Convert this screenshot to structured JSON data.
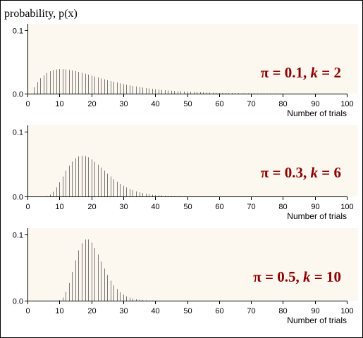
{
  "figure": {
    "ylabel": "probability, p(x)"
  },
  "chart_data": [
    {
      "type": "bar",
      "annotation": {
        "pi": "π = 0.1, ",
        "k_sym": "k",
        "eq": " = 2"
      },
      "pi": 0.1,
      "k": 2,
      "xlabel": "Number of trials",
      "xlim": [
        0,
        100
      ],
      "ylim": [
        0,
        0.11
      ],
      "xticks": [
        "0",
        "10",
        "20",
        "30",
        "40",
        "50",
        "60",
        "70",
        "80",
        "90",
        "100"
      ],
      "yticks": [
        "0.0",
        "0.1"
      ]
    },
    {
      "type": "bar",
      "annotation": {
        "pi": "π = 0.3, ",
        "k_sym": "k",
        "eq": " = 6"
      },
      "pi": 0.3,
      "k": 6,
      "xlabel": "Number of trials",
      "xlim": [
        0,
        100
      ],
      "ylim": [
        0,
        0.11
      ],
      "xticks": [
        "0",
        "10",
        "20",
        "30",
        "40",
        "50",
        "60",
        "70",
        "80",
        "90",
        "100"
      ],
      "yticks": [
        "0.0",
        "0.1"
      ]
    },
    {
      "type": "bar",
      "annotation": {
        "pi": "π = 0.5, ",
        "k_sym": "k",
        "eq": " = 10"
      },
      "pi": 0.5,
      "k": 10,
      "xlabel": "Number of trials",
      "xlim": [
        0,
        100
      ],
      "ylim": [
        0,
        0.11
      ],
      "xticks": [
        "0",
        "10",
        "20",
        "30",
        "40",
        "50",
        "60",
        "70",
        "80",
        "90",
        "100"
      ],
      "yticks": [
        "0.0",
        "0.1"
      ]
    }
  ],
  "colors": {
    "panel_bg": "#fdf8ef",
    "bar": "#777777",
    "annotation": "#8b0000"
  }
}
